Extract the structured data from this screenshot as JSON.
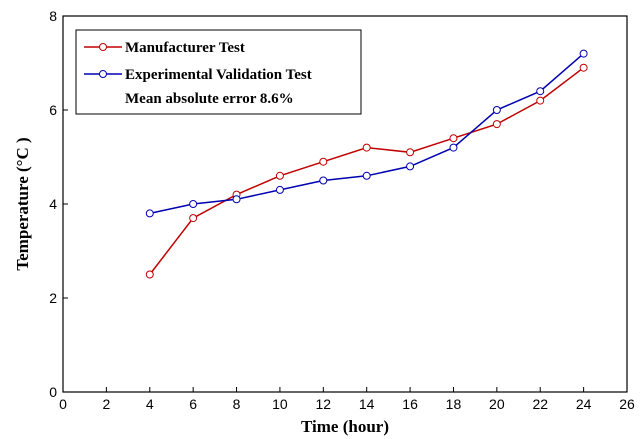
{
  "chart_data": {
    "type": "line",
    "x_label": "Time (hour)",
    "y_label": "Temperature (°C )",
    "annotation": "Mean absolute error 8.6%",
    "x": [
      4,
      6,
      8,
      10,
      12,
      14,
      16,
      18,
      20,
      22,
      24
    ],
    "series": [
      {
        "name": "Manufacturer Test",
        "color": "#c00000",
        "values": [
          2.5,
          3.7,
          4.2,
          4.6,
          4.9,
          5.2,
          5.1,
          5.4,
          5.7,
          6.2,
          6.9
        ]
      },
      {
        "name": "Experimental Validation Test",
        "color": "#0000b0",
        "values": [
          3.8,
          4.0,
          4.1,
          4.3,
          4.5,
          4.6,
          4.8,
          5.2,
          6.0,
          6.4,
          7.2
        ]
      }
    ],
    "xlim": [
      0,
      26
    ],
    "xticks": [
      0,
      2,
      4,
      6,
      8,
      10,
      12,
      14,
      16,
      18,
      20,
      22,
      24,
      26
    ],
    "ylim": [
      0,
      8
    ],
    "yticks": [
      0,
      2,
      4,
      6,
      8
    ],
    "grid": false,
    "legend_position": "upper-left"
  }
}
